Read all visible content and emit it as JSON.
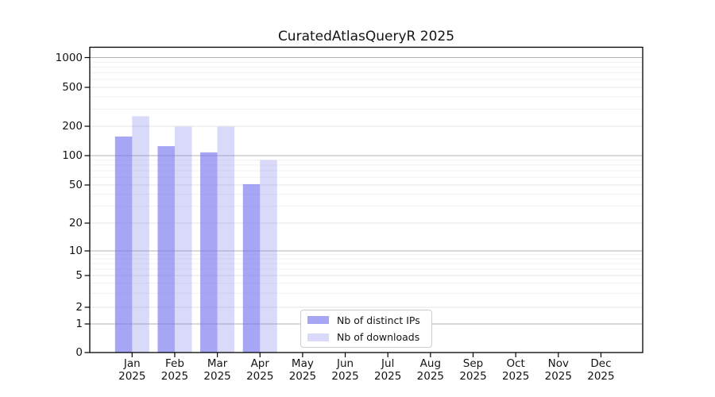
{
  "chart_data": {
    "type": "bar",
    "title": "CuratedAtlasQueryR 2025",
    "categories": [
      "Jan",
      "Feb",
      "Mar",
      "Apr",
      "May",
      "Jun",
      "Jul",
      "Aug",
      "Sep",
      "Oct",
      "Nov",
      "Dec"
    ],
    "category_year": "2025",
    "series": [
      {
        "name": "Nb of distinct IPs",
        "color": "rgba(119,119,238,0.65)",
        "legend_swatch_color": "#ababf4",
        "values": [
          157,
          125,
          108,
          51,
          0,
          0,
          0,
          0,
          0,
          0,
          0,
          0
        ]
      },
      {
        "name": "Nb of downloads",
        "color": "rgba(119,119,238,0.28)",
        "legend_swatch_color": "#dcdcf9",
        "values": [
          253,
          198,
          198,
          90,
          0,
          0,
          0,
          0,
          0,
          0,
          0,
          0
        ]
      }
    ],
    "y_axis": {
      "scale": "symlog",
      "ticks": [
        0,
        1,
        2,
        5,
        10,
        20,
        50,
        100,
        200,
        500,
        1000
      ],
      "minor_ticks": [
        3,
        4,
        6,
        7,
        8,
        9,
        30,
        40,
        60,
        70,
        80,
        90,
        300,
        400,
        600,
        700,
        800,
        900
      ],
      "range": [
        0,
        1200
      ]
    },
    "xlabel": "",
    "ylabel": "",
    "grid": true,
    "legend_position": "lower-center"
  },
  "style": {
    "grid_decade_color": "#b3b3b3",
    "grid_major_color": "#e4e4e4",
    "grid_minor_color": "#f1f1f1",
    "spine_color": "#000000",
    "text_color": "#141414"
  }
}
